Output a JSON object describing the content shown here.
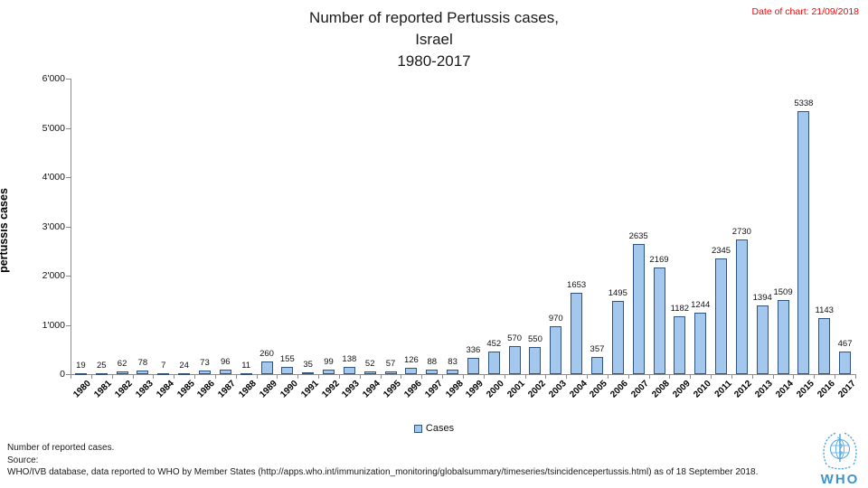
{
  "header": {
    "title_lines": [
      "Number of reported Pertussis cases,",
      "Israel",
      "1980-2017"
    ],
    "date_label": "Date of chart: 21/09/2018"
  },
  "chart_data": {
    "type": "bar",
    "title": "Number of reported Pertussis cases, Israel 1980-2017",
    "xlabel": "",
    "ylabel": "pertussis cases",
    "ylim": [
      0,
      6000
    ],
    "ytick_interval": 1000,
    "ytick_labels": [
      "0",
      "1'000",
      "2'000",
      "3'000",
      "4'000",
      "5'000",
      "6'000"
    ],
    "grid": false,
    "legend_position": "bottom",
    "bar_fill": "#a4c7ee",
    "bar_border": "#2f5480",
    "categories": [
      "1980",
      "1981",
      "1982",
      "1983",
      "1984",
      "1985",
      "1986",
      "1987",
      "1988",
      "1989",
      "1990",
      "1991",
      "1992",
      "1993",
      "1994",
      "1995",
      "1996",
      "1997",
      "1998",
      "1999",
      "2000",
      "2001",
      "2002",
      "2003",
      "2004",
      "2005",
      "2006",
      "2007",
      "2008",
      "2009",
      "2010",
      "2011",
      "2012",
      "2013",
      "2014",
      "2015",
      "2016",
      "2017"
    ],
    "values": [
      19,
      25,
      62,
      78,
      7,
      24,
      73,
      96,
      11,
      260,
      155,
      35,
      99,
      138,
      52,
      57,
      126,
      88,
      83,
      336,
      452,
      570,
      550,
      970,
      1653,
      357,
      1495,
      2635,
      2169,
      1182,
      1244,
      2345,
      2730,
      1394,
      1509,
      5338,
      1143,
      467
    ]
  },
  "legend": {
    "label": "Cases"
  },
  "footer": {
    "line1": "Number of reported cases.",
    "line2": "Source:",
    "line3": "WHO/IVB database, data reported to WHO by Member States (http://apps.who.int/immunization_monitoring/globalsummary/timeseries/tsincidencepertussis.html) as of 18 September 2018."
  },
  "logo": {
    "text": "WHO",
    "color": "#4aa3dc"
  }
}
